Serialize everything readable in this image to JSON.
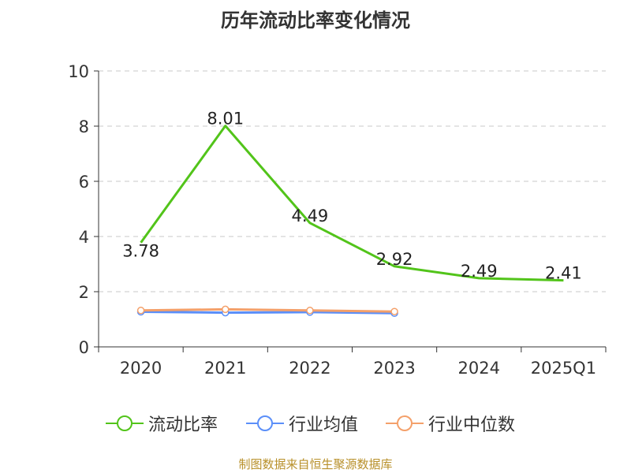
{
  "title": "历年流动比率变化情况",
  "source": "制图数据来自恒生聚源数据库",
  "chart_data": {
    "type": "line",
    "categories": [
      "2020",
      "2021",
      "2022",
      "2023",
      "2024",
      "2025Q1"
    ],
    "ylim": [
      0,
      10
    ],
    "yticks": [
      0,
      2,
      4,
      6,
      8,
      10
    ],
    "grid": true,
    "legend_position": "bottom",
    "series": [
      {
        "name": "流动比率",
        "color": "#52c41a",
        "values": [
          3.78,
          8.01,
          4.49,
          2.92,
          2.49,
          2.41
        ],
        "labels": [
          "3.78",
          "8.01",
          "4.49",
          "2.92",
          "2.49",
          "2.41"
        ]
      },
      {
        "name": "行业均值",
        "color": "#5b8ff9",
        "values": [
          1.27,
          1.24,
          1.26,
          1.22,
          null,
          null
        ]
      },
      {
        "name": "行业中位数",
        "color": "#f4a06a",
        "values": [
          1.32,
          1.36,
          1.32,
          1.28,
          null,
          null
        ]
      }
    ]
  }
}
